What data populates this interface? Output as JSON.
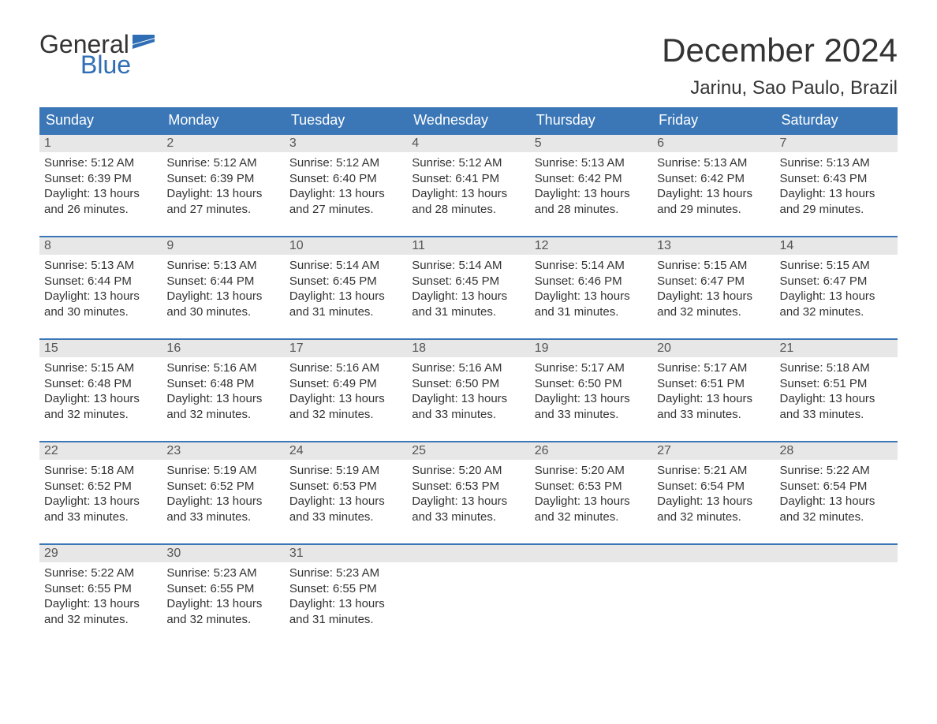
{
  "logo": {
    "line1": "General",
    "line2": "Blue"
  },
  "title": "December 2024",
  "location": "Jarinu, Sao Paulo, Brazil",
  "colors": {
    "header_bg": "#3b77b7",
    "header_text": "#ffffff",
    "daynum_bg": "#e7e7e7",
    "daynum_text": "#555555",
    "body_text": "#333333",
    "accent": "#2f6eb5",
    "page_bg": "#ffffff"
  },
  "dayNames": [
    "Sunday",
    "Monday",
    "Tuesday",
    "Wednesday",
    "Thursday",
    "Friday",
    "Saturday"
  ],
  "weeks": [
    [
      {
        "n": "1",
        "sr": "5:12 AM",
        "ss": "6:39 PM",
        "dl": "13 hours and 26 minutes."
      },
      {
        "n": "2",
        "sr": "5:12 AM",
        "ss": "6:39 PM",
        "dl": "13 hours and 27 minutes."
      },
      {
        "n": "3",
        "sr": "5:12 AM",
        "ss": "6:40 PM",
        "dl": "13 hours and 27 minutes."
      },
      {
        "n": "4",
        "sr": "5:12 AM",
        "ss": "6:41 PM",
        "dl": "13 hours and 28 minutes."
      },
      {
        "n": "5",
        "sr": "5:13 AM",
        "ss": "6:42 PM",
        "dl": "13 hours and 28 minutes."
      },
      {
        "n": "6",
        "sr": "5:13 AM",
        "ss": "6:42 PM",
        "dl": "13 hours and 29 minutes."
      },
      {
        "n": "7",
        "sr": "5:13 AM",
        "ss": "6:43 PM",
        "dl": "13 hours and 29 minutes."
      }
    ],
    [
      {
        "n": "8",
        "sr": "5:13 AM",
        "ss": "6:44 PM",
        "dl": "13 hours and 30 minutes."
      },
      {
        "n": "9",
        "sr": "5:13 AM",
        "ss": "6:44 PM",
        "dl": "13 hours and 30 minutes."
      },
      {
        "n": "10",
        "sr": "5:14 AM",
        "ss": "6:45 PM",
        "dl": "13 hours and 31 minutes."
      },
      {
        "n": "11",
        "sr": "5:14 AM",
        "ss": "6:45 PM",
        "dl": "13 hours and 31 minutes."
      },
      {
        "n": "12",
        "sr": "5:14 AM",
        "ss": "6:46 PM",
        "dl": "13 hours and 31 minutes."
      },
      {
        "n": "13",
        "sr": "5:15 AM",
        "ss": "6:47 PM",
        "dl": "13 hours and 32 minutes."
      },
      {
        "n": "14",
        "sr": "5:15 AM",
        "ss": "6:47 PM",
        "dl": "13 hours and 32 minutes."
      }
    ],
    [
      {
        "n": "15",
        "sr": "5:15 AM",
        "ss": "6:48 PM",
        "dl": "13 hours and 32 minutes."
      },
      {
        "n": "16",
        "sr": "5:16 AM",
        "ss": "6:48 PM",
        "dl": "13 hours and 32 minutes."
      },
      {
        "n": "17",
        "sr": "5:16 AM",
        "ss": "6:49 PM",
        "dl": "13 hours and 32 minutes."
      },
      {
        "n": "18",
        "sr": "5:16 AM",
        "ss": "6:50 PM",
        "dl": "13 hours and 33 minutes."
      },
      {
        "n": "19",
        "sr": "5:17 AM",
        "ss": "6:50 PM",
        "dl": "13 hours and 33 minutes."
      },
      {
        "n": "20",
        "sr": "5:17 AM",
        "ss": "6:51 PM",
        "dl": "13 hours and 33 minutes."
      },
      {
        "n": "21",
        "sr": "5:18 AM",
        "ss": "6:51 PM",
        "dl": "13 hours and 33 minutes."
      }
    ],
    [
      {
        "n": "22",
        "sr": "5:18 AM",
        "ss": "6:52 PM",
        "dl": "13 hours and 33 minutes."
      },
      {
        "n": "23",
        "sr": "5:19 AM",
        "ss": "6:52 PM",
        "dl": "13 hours and 33 minutes."
      },
      {
        "n": "24",
        "sr": "5:19 AM",
        "ss": "6:53 PM",
        "dl": "13 hours and 33 minutes."
      },
      {
        "n": "25",
        "sr": "5:20 AM",
        "ss": "6:53 PM",
        "dl": "13 hours and 33 minutes."
      },
      {
        "n": "26",
        "sr": "5:20 AM",
        "ss": "6:53 PM",
        "dl": "13 hours and 32 minutes."
      },
      {
        "n": "27",
        "sr": "5:21 AM",
        "ss": "6:54 PM",
        "dl": "13 hours and 32 minutes."
      },
      {
        "n": "28",
        "sr": "5:22 AM",
        "ss": "6:54 PM",
        "dl": "13 hours and 32 minutes."
      }
    ],
    [
      {
        "n": "29",
        "sr": "5:22 AM",
        "ss": "6:55 PM",
        "dl": "13 hours and 32 minutes."
      },
      {
        "n": "30",
        "sr": "5:23 AM",
        "ss": "6:55 PM",
        "dl": "13 hours and 32 minutes."
      },
      {
        "n": "31",
        "sr": "5:23 AM",
        "ss": "6:55 PM",
        "dl": "13 hours and 31 minutes."
      },
      null,
      null,
      null,
      null
    ]
  ],
  "labels": {
    "sunrise": "Sunrise: ",
    "sunset": "Sunset: ",
    "daylight": "Daylight: "
  }
}
